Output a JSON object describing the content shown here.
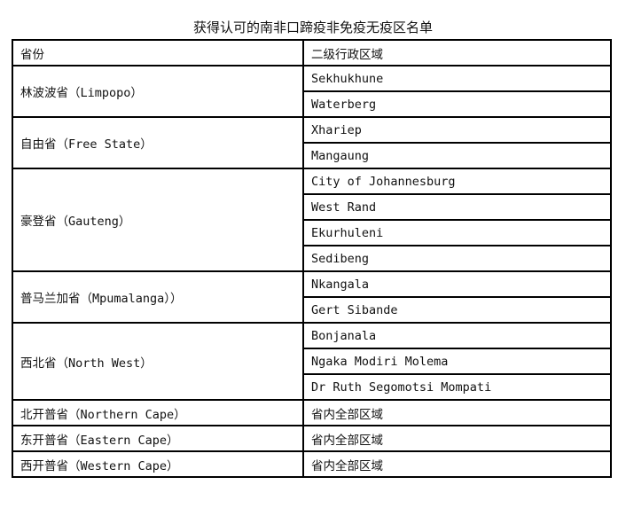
{
  "title": "获得认可的南非口蹄疫非免疫无疫区名单",
  "headers": [
    "省份",
    "二级行政区域"
  ],
  "rows": [
    {
      "province": "林波波省（Limpopo）",
      "districts": [
        "Sekhukhune",
        "Waterberg"
      ]
    },
    {
      "province": "自由省（Free State）",
      "districts": [
        "Xhariep",
        "Mangaung"
      ]
    },
    {
      "province": "豪登省（Gauteng）",
      "districts": [
        "City of Johannesburg",
        "West Rand",
        "Ekurhuleni",
        "Sedibeng"
      ]
    },
    {
      "province": "普马兰加省（Mpumalanga））",
      "districts": [
        "Nkangala",
        "Gert Sibande"
      ]
    },
    {
      "province": "西北省（North West）",
      "districts": [
        "Bonjanala",
        "Ngaka Modiri Molema",
        "Dr Ruth Segomotsi Mompati"
      ]
    },
    {
      "province": "北开普省（Northern Cape）",
      "districts": [
        "省内全部区域"
      ]
    },
    {
      "province": "东开普省（Eastern Cape）",
      "districts": [
        "省内全部区域"
      ]
    },
    {
      "province": "西开普省（Western Cape）",
      "districts": [
        "省内全部区域"
      ]
    }
  ]
}
